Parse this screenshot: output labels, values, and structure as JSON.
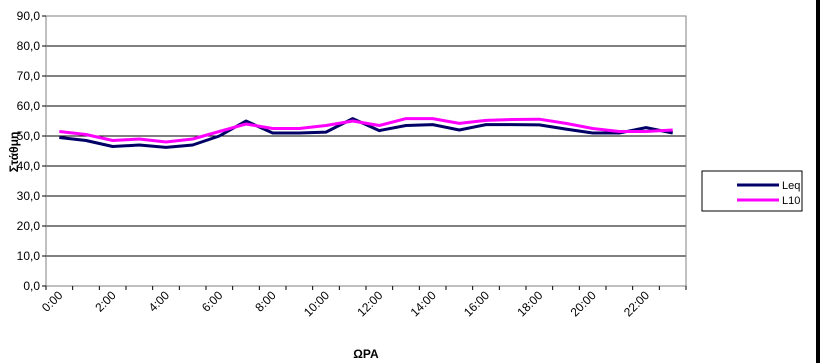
{
  "chart_data": {
    "type": "line",
    "ylabel": "Στάθμη",
    "xlabel": "ΩΡΑ",
    "ylim": [
      0,
      90
    ],
    "y_ticks": [
      "0,0",
      "10,0",
      "20,0",
      "30,0",
      "40,0",
      "50,0",
      "60,0",
      "70,0",
      "80,0",
      "90,0"
    ],
    "x_tick_labels": [
      "0:00",
      "2:00",
      "4:00",
      "6:00",
      "8:00",
      "10:00",
      "12:00",
      "14:00",
      "16:00",
      "18:00",
      "20:00",
      "22:00"
    ],
    "x": [
      0,
      1,
      2,
      3,
      4,
      5,
      6,
      7,
      8,
      9,
      10,
      11,
      12,
      13,
      14,
      15,
      16,
      17,
      18,
      19,
      20,
      21,
      22,
      23
    ],
    "grid": "horizontal",
    "legend_position": "right",
    "series": [
      {
        "name": "Leq",
        "color": "#000066",
        "values": [
          49.5,
          48.5,
          46.5,
          47.0,
          46.2,
          47.0,
          50.0,
          55.0,
          51.0,
          51.0,
          51.3,
          55.8,
          51.8,
          53.5,
          53.8,
          52.0,
          53.8,
          53.8,
          53.7,
          52.3,
          51.0,
          51.0,
          52.8,
          51.0
        ]
      },
      {
        "name": "L10",
        "color": "#ff00ff",
        "values": [
          51.5,
          50.5,
          48.5,
          49.0,
          48.0,
          49.0,
          51.5,
          54.0,
          52.5,
          52.5,
          53.5,
          55.0,
          53.5,
          55.8,
          55.8,
          54.2,
          55.2,
          55.5,
          55.6,
          54.2,
          52.5,
          51.5,
          51.5,
          52.0
        ]
      }
    ]
  }
}
